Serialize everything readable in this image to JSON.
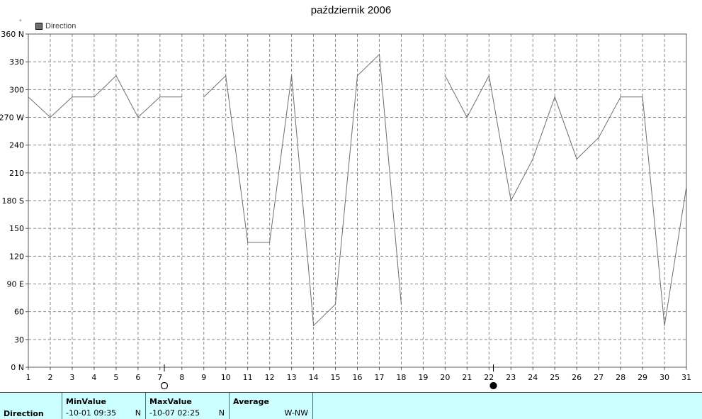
{
  "chart_data": {
    "type": "line",
    "title": "październik 2006",
    "legend": [
      {
        "name": "Direction",
        "color": "#6e6e6e"
      }
    ],
    "legend_position": "top-left",
    "grid": true,
    "xlim": [
      1,
      31
    ],
    "ylim": [
      0,
      360
    ],
    "x_ticks": [
      "1",
      "2",
      "3",
      "4",
      "5",
      "6",
      "7",
      "8",
      "9",
      "10",
      "11",
      "12",
      "13",
      "14",
      "15",
      "16",
      "17",
      "18",
      "19",
      "20",
      "21",
      "22",
      "23",
      "24",
      "25",
      "26",
      "27",
      "28",
      "29",
      "30",
      "31"
    ],
    "y_ticks": [
      {
        "value": 0,
        "label": "0  N"
      },
      {
        "value": 30,
        "label": "30"
      },
      {
        "value": 60,
        "label": "60"
      },
      {
        "value": 90,
        "label": "90  E"
      },
      {
        "value": 120,
        "label": "120"
      },
      {
        "value": 150,
        "label": "150"
      },
      {
        "value": 180,
        "label": "180 S"
      },
      {
        "value": 210,
        "label": "210"
      },
      {
        "value": 240,
        "label": "240"
      },
      {
        "value": 270,
        "label": "270 W"
      },
      {
        "value": 300,
        "label": "300"
      },
      {
        "value": 330,
        "label": "330"
      },
      {
        "value": 360,
        "label": "360 N"
      }
    ],
    "series": [
      {
        "name": "Direction",
        "color": "#6e6e6e",
        "segments": [
          [
            [
              1,
              292
            ],
            [
              2,
              270
            ],
            [
              3,
              292
            ],
            [
              4,
              292
            ],
            [
              5,
              315
            ],
            [
              6,
              270
            ],
            [
              7,
              292
            ],
            [
              8,
              292
            ]
          ],
          [
            [
              9,
              292
            ],
            [
              10,
              315
            ],
            [
              11,
              135
            ],
            [
              12,
              135
            ],
            [
              13,
              315
            ],
            [
              14,
              45
            ],
            [
              15,
              68
            ],
            [
              16,
              315
            ],
            [
              17,
              338
            ],
            [
              18,
              68
            ]
          ],
          [
            [
              20,
              315
            ],
            [
              21,
              270
            ],
            [
              22,
              315
            ],
            [
              23,
              180
            ],
            [
              24,
              225
            ],
            [
              25,
              292
            ],
            [
              26,
              225
            ],
            [
              27,
              248
            ],
            [
              28,
              292
            ],
            [
              29,
              292
            ],
            [
              30,
              45
            ],
            [
              31,
              195
            ]
          ]
        ]
      }
    ],
    "moon_phases": [
      {
        "day": 7.2,
        "phase": "full-moon"
      },
      {
        "day": 22.2,
        "phase": "new-moon"
      }
    ]
  },
  "legend": {
    "label": "Direction",
    "degree_symbol": "°"
  },
  "stats": {
    "row_label": "Direction",
    "min": {
      "header": "MinValue",
      "value": "-10-01  09:35",
      "unit": "N"
    },
    "max": {
      "header": "MaxValue",
      "value": "-10-07  02:25",
      "unit": "N"
    },
    "avg": {
      "header": "Average",
      "value": "W-NW"
    }
  }
}
